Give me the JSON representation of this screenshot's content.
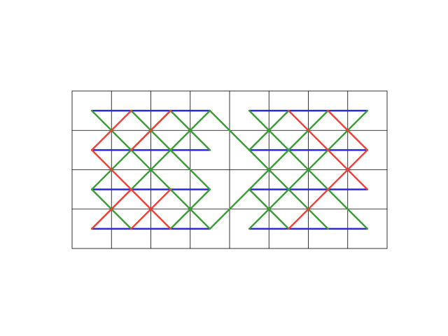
{
  "diagram": {
    "cols": 8,
    "rows": 4,
    "colors": {
      "grid": "#000000",
      "blue": "#2b2bd6",
      "red": "#f0403a",
      "green": "#3a9d36",
      "background": "#ffffff"
    },
    "blue_lines": [
      [
        [
          0.5,
          0.5
        ],
        [
          3.5,
          0.5
        ]
      ],
      [
        [
          4.5,
          0.5
        ],
        [
          7.5,
          0.5
        ]
      ],
      [
        [
          0.5,
          1.5
        ],
        [
          3.5,
          1.5
        ]
      ],
      [
        [
          4.5,
          1.5
        ],
        [
          7.5,
          1.5
        ]
      ],
      [
        [
          0.5,
          2.5
        ],
        [
          3.5,
          2.5
        ]
      ],
      [
        [
          4.5,
          2.5
        ],
        [
          7.5,
          2.5
        ]
      ],
      [
        [
          0.5,
          3.5
        ],
        [
          3.5,
          3.5
        ]
      ],
      [
        [
          4.5,
          3.5
        ],
        [
          7.5,
          3.5
        ]
      ]
    ],
    "green_lines": [
      [
        [
          0.5,
          0.5
        ],
        [
          3.5,
          3.5
        ]
      ],
      [
        [
          1.5,
          0.5
        ],
        [
          3.5,
          2.5
        ]
      ],
      [
        [
          2.5,
          0.5
        ],
        [
          3.5,
          1.5
        ]
      ],
      [
        [
          3.5,
          0.5
        ],
        [
          0.5,
          3.5
        ]
      ],
      [
        [
          2.5,
          0.5
        ],
        [
          0.5,
          2.5
        ]
      ],
      [
        [
          0.5,
          2.5
        ],
        [
          1.5,
          3.5
        ]
      ],
      [
        [
          2.5,
          3.5
        ],
        [
          3.5,
          2.5
        ]
      ],
      [
        [
          3.5,
          0.5
        ],
        [
          6.5,
          3.5
        ]
      ],
      [
        [
          4.5,
          0.5
        ],
        [
          7.5,
          3.5
        ]
      ],
      [
        [
          7.5,
          0.5
        ],
        [
          4.5,
          3.5
        ]
      ],
      [
        [
          6.5,
          0.5
        ],
        [
          3.5,
          3.5
        ]
      ],
      [
        [
          5.5,
          0.5
        ],
        [
          4.5,
          1.5
        ]
      ],
      [
        [
          4.5,
          2.5
        ],
        [
          5.5,
          3.5
        ]
      ]
    ],
    "red_lines": [
      [
        [
          1.5,
          0.5
        ],
        [
          0.5,
          1.5
        ]
      ],
      [
        [
          0.5,
          1.5
        ],
        [
          1.5,
          2.5
        ]
      ],
      [
        [
          1.5,
          2.5
        ],
        [
          0.5,
          3.5
        ]
      ],
      [
        [
          2.5,
          0.5
        ],
        [
          1.5,
          1.5
        ]
      ],
      [
        [
          1.5,
          3.5
        ],
        [
          2.5,
          2.5
        ]
      ],
      [
        [
          1.5,
          2.5
        ],
        [
          2.5,
          3.5
        ]
      ],
      [
        [
          5.5,
          0.5
        ],
        [
          7.5,
          2.5
        ]
      ],
      [
        [
          6.5,
          0.5
        ],
        [
          7.5,
          1.5
        ]
      ],
      [
        [
          5.5,
          3.5
        ],
        [
          7.5,
          1.5
        ]
      ]
    ]
  }
}
